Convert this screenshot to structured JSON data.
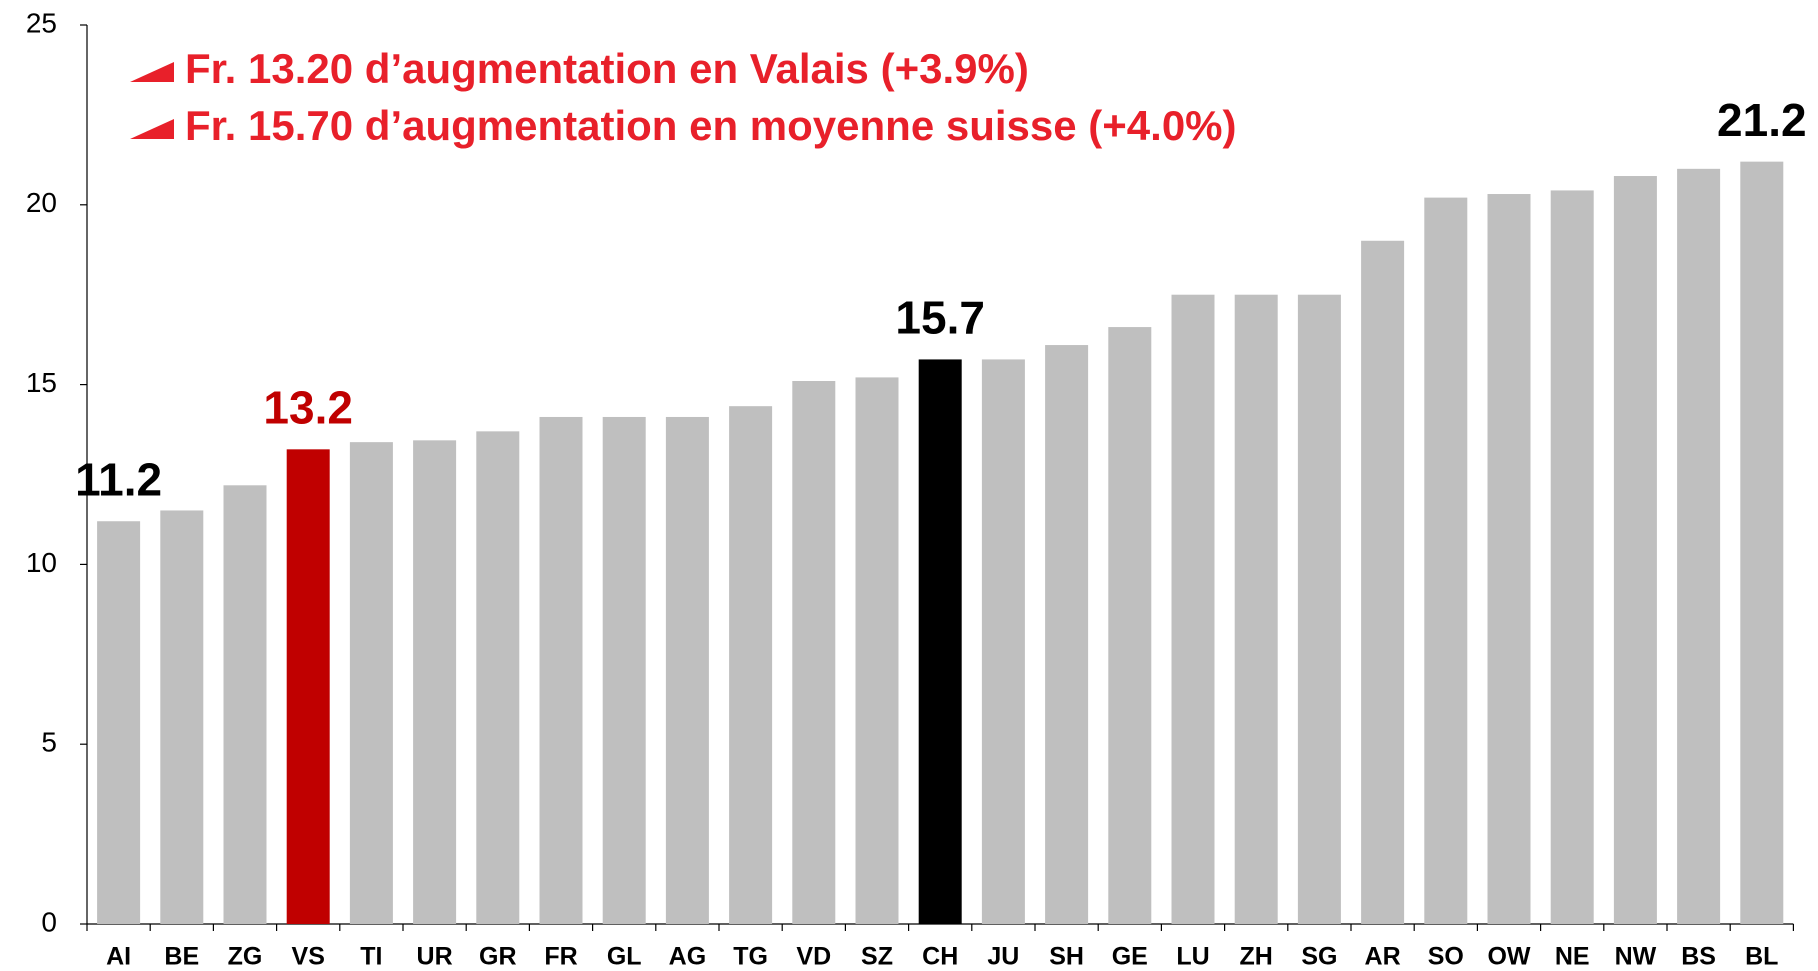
{
  "chart_data": {
    "type": "bar",
    "annotations": [
      "Fr. 13.20 d’augmentation en Valais (+3.9%)",
      "Fr. 15.70 d’augmentation en moyenne suisse (+4.0%)"
    ],
    "categories": [
      "AI",
      "BE",
      "ZG",
      "VS",
      "TI",
      "UR",
      "GR",
      "FR",
      "GL",
      "AG",
      "TG",
      "VD",
      "SZ",
      "CH",
      "JU",
      "SH",
      "GE",
      "LU",
      "ZH",
      "SG",
      "AR",
      "SO",
      "OW",
      "NE",
      "NW",
      "BS",
      "BL"
    ],
    "values": [
      11.2,
      11.5,
      12.2,
      13.2,
      13.4,
      13.45,
      13.7,
      14.1,
      14.1,
      14.1,
      14.4,
      15.1,
      15.2,
      15.7,
      15.7,
      16.1,
      16.6,
      17.5,
      17.5,
      17.5,
      19.0,
      20.2,
      20.3,
      20.4,
      20.8,
      21.0,
      21.2
    ],
    "value_labels": [
      "11.2",
      null,
      null,
      "13.2",
      null,
      null,
      null,
      null,
      null,
      null,
      null,
      null,
      null,
      "15.7",
      null,
      null,
      null,
      null,
      null,
      null,
      null,
      null,
      null,
      null,
      null,
      null,
      "21.2"
    ],
    "colors": [
      "#bfbfbf",
      "#bfbfbf",
      "#bfbfbf",
      "#c00000",
      "#bfbfbf",
      "#bfbfbf",
      "#bfbfbf",
      "#bfbfbf",
      "#bfbfbf",
      "#bfbfbf",
      "#bfbfbf",
      "#bfbfbf",
      "#bfbfbf",
      "#000000",
      "#bfbfbf",
      "#bfbfbf",
      "#bfbfbf",
      "#bfbfbf",
      "#bfbfbf",
      "#bfbfbf",
      "#bfbfbf",
      "#bfbfbf",
      "#bfbfbf",
      "#bfbfbf",
      "#bfbfbf",
      "#bfbfbf",
      "#bfbfbf"
    ],
    "annotation_color": "#e8202a",
    "ylim": [
      0,
      25
    ],
    "yticks": [
      0,
      5,
      10,
      15,
      20,
      25
    ],
    "grid": false
  }
}
